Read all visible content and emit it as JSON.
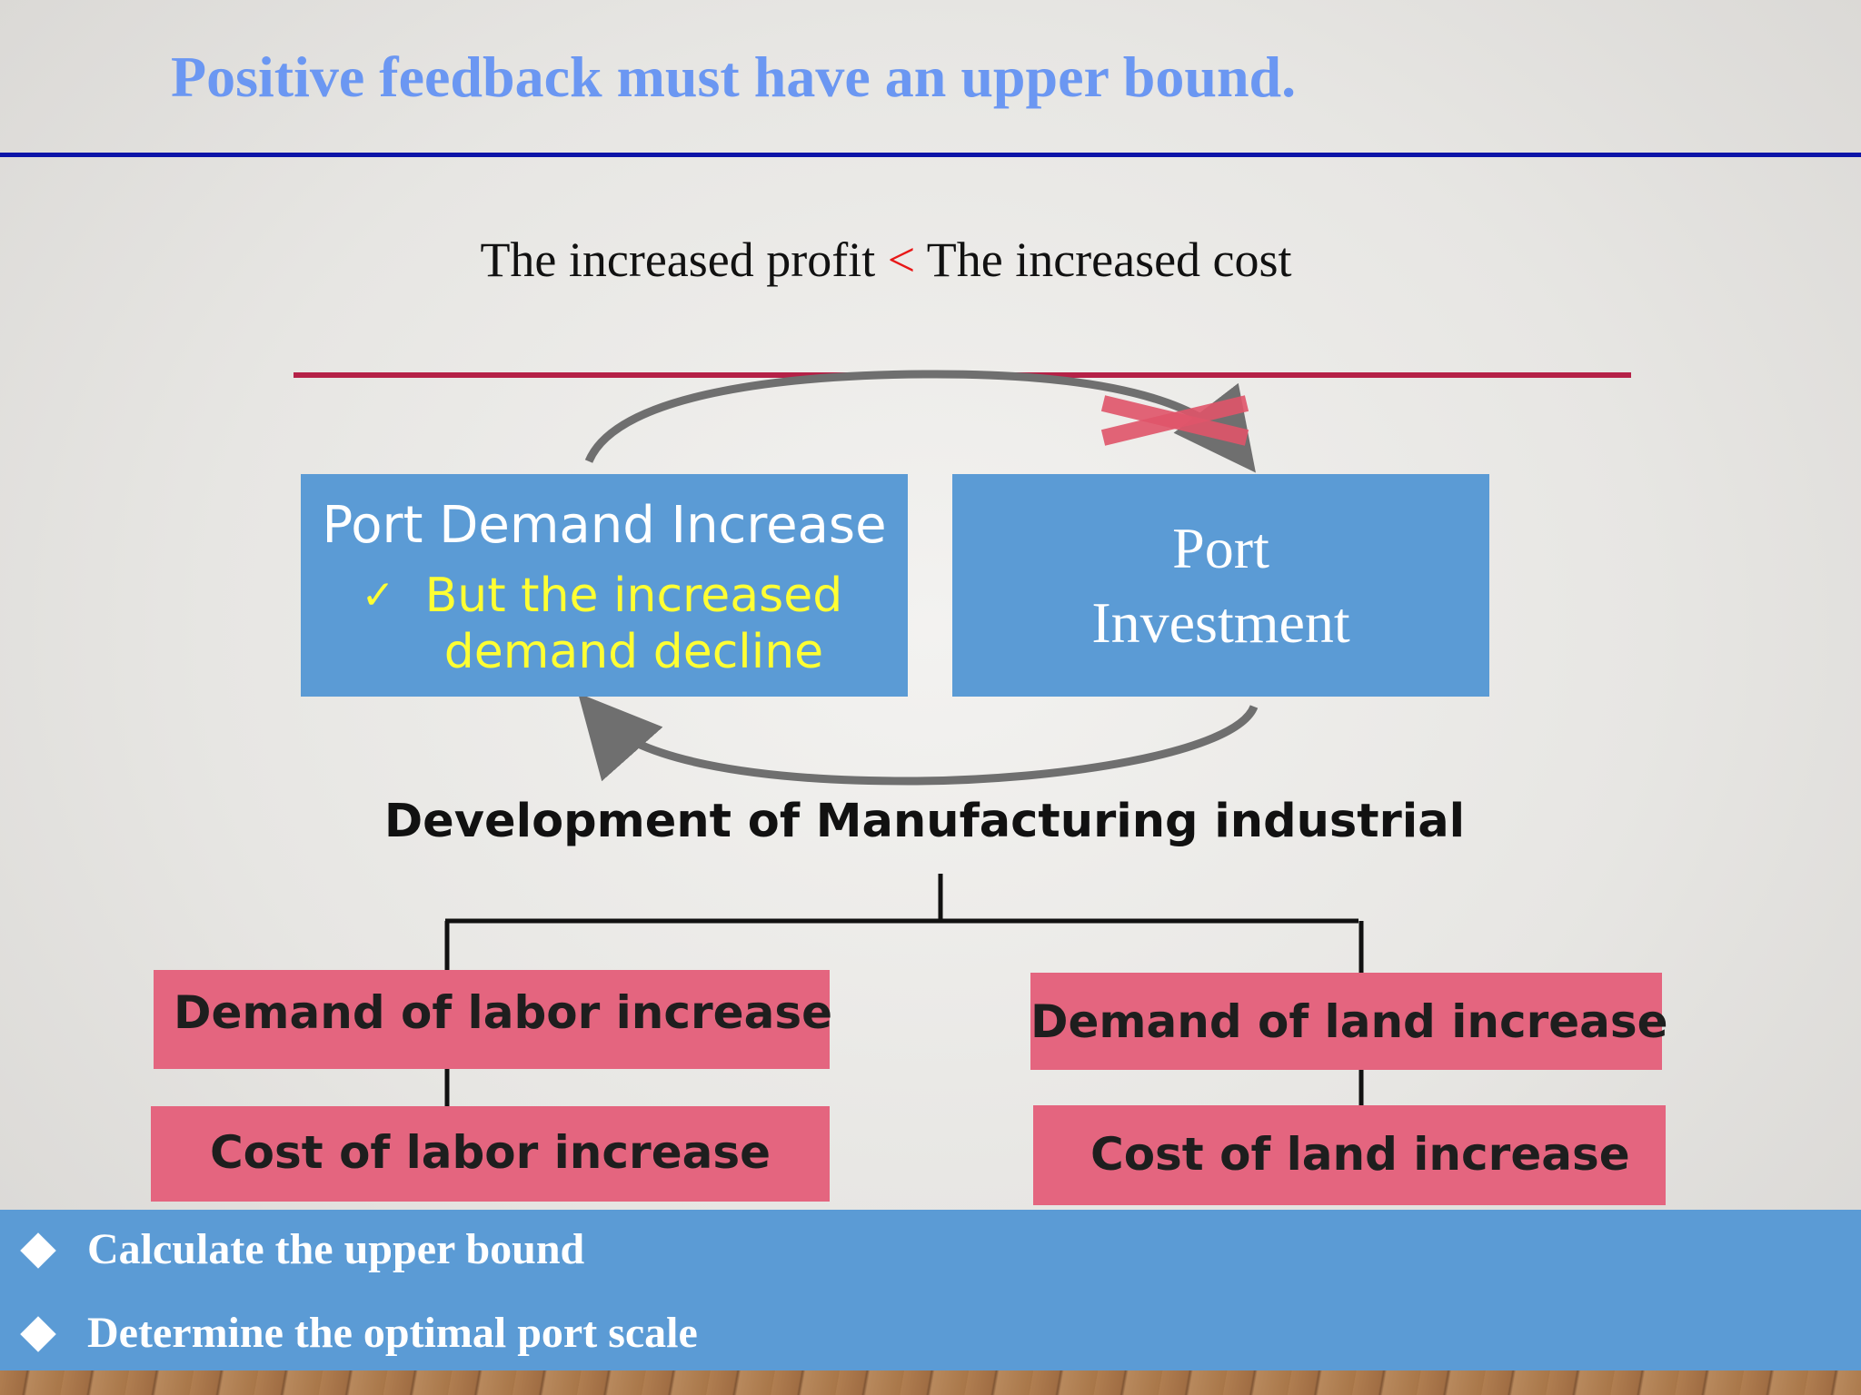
{
  "slide": {
    "title": "Positive feedback must have an upper bound.",
    "comparison": {
      "left": "The increased profit",
      "operator": "<",
      "right": "The increased cost"
    },
    "loop": {
      "demand_box": {
        "title": "Port Demand Increase",
        "note": "But the increased demand decline"
      },
      "investment_box": {
        "line1": "Port",
        "line2": "Investment"
      },
      "blocked_mark": "cross-icon"
    },
    "development_label": "Development of Manufacturing industrial",
    "branches": {
      "labor": {
        "demand": "Demand of labor increase",
        "cost": "Cost of labor increase"
      },
      "land": {
        "demand": "Demand of land increase",
        "cost": "Cost of land increase"
      }
    },
    "bullets": [
      "Calculate the upper bound",
      "Determine the optimal port scale"
    ]
  },
  "colors": {
    "title": "#6b97f2",
    "title_rule": "#0c14a8",
    "threshold_line": "#b52147",
    "operator": "#e81818",
    "box_blue": "#5b9bd5",
    "note_yellow": "#ffff33",
    "box_pink": "#e4657f",
    "cross": "#e0556a"
  }
}
